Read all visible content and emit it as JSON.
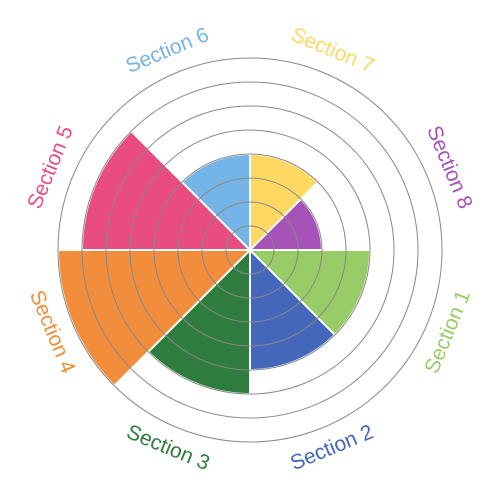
{
  "chart_data": {
    "type": "polar-area",
    "rings": 8,
    "rmax": 8,
    "grid": true,
    "ring_color": "#888888",
    "sections": [
      {
        "label": "Section 1",
        "value": 5,
        "color": "#98CC66"
      },
      {
        "label": "Section 2",
        "value": 5,
        "color": "#4466BB"
      },
      {
        "label": "Section 3",
        "value": 6,
        "color": "#2E7D3E"
      },
      {
        "label": "Section 4",
        "value": 8,
        "color": "#F28D3C"
      },
      {
        "label": "Section 5",
        "value": 7,
        "color": "#E84C80"
      },
      {
        "label": "Section 6",
        "value": 4,
        "color": "#74B4E6"
      },
      {
        "label": "Section 7",
        "value": 4,
        "color": "#FDD862"
      },
      {
        "label": "Section 8",
        "value": 3,
        "color": "#A652B6"
      }
    ]
  }
}
